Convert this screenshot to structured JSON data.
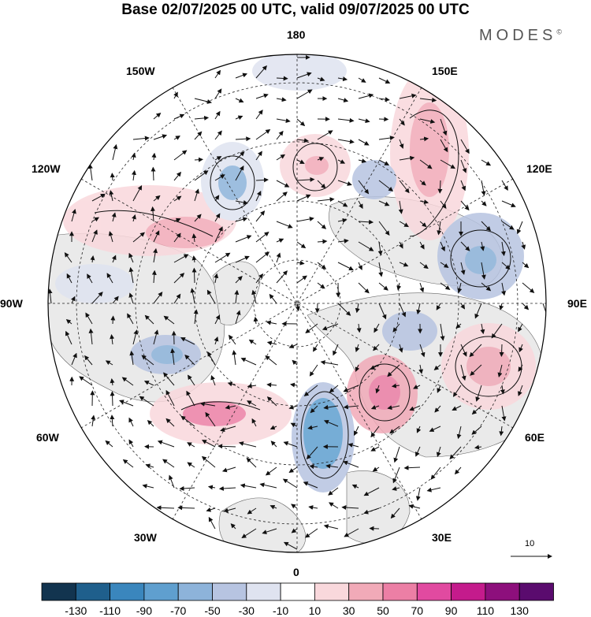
{
  "title": "Base 02/07/2025 00 UTC, valid 09/07/2025 00 UTC",
  "brand": {
    "name": "MODES",
    "mark": "©"
  },
  "map": {
    "projection": "north-polar-stereographic",
    "longitude_labels": [
      {
        "key": "180",
        "text": "180"
      },
      {
        "key": "150E",
        "text": "150E"
      },
      {
        "key": "120E",
        "text": "120E"
      },
      {
        "key": "90E",
        "text": "90E"
      },
      {
        "key": "60E",
        "text": "60E"
      },
      {
        "key": "30E",
        "text": "30E"
      },
      {
        "key": "0",
        "text": "0"
      },
      {
        "key": "30W",
        "text": "30W"
      },
      {
        "key": "60W",
        "text": "60W"
      },
      {
        "key": "90W",
        "text": "90W"
      },
      {
        "key": "120W",
        "text": "120W"
      },
      {
        "key": "150W",
        "text": "150W"
      }
    ],
    "vector_scale_label": "10",
    "colors": {
      "land": "#eaeaea",
      "ocean": "#ffffff",
      "grid": "#222222"
    }
  },
  "legend": {
    "colors": [
      "#12344f",
      "#1f5f8c",
      "#3a86bd",
      "#5f9fcf",
      "#8db3da",
      "#b7c4e1",
      "#dfe3f0",
      "#ffffff",
      "#f9d8dc",
      "#f1aab8",
      "#ec7fa5",
      "#e14aa0",
      "#c41b8c",
      "#8d0f7c",
      "#5a0b6e"
    ],
    "tick_labels": [
      "-130",
      "-110",
      "-90",
      "-70",
      "-50",
      "-30",
      "-10",
      "10",
      "30",
      "50",
      "70",
      "90",
      "110",
      "130"
    ]
  },
  "anomaly_centers": [
    {
      "type": "positive",
      "level": "30",
      "color": "#f9d8dc"
    },
    {
      "type": "positive",
      "level": "50",
      "color": "#f1aab8"
    },
    {
      "type": "positive",
      "level": "70",
      "color": "#ec7fa5"
    },
    {
      "type": "negative",
      "level": "-30",
      "color": "#b7c4e1"
    },
    {
      "type": "negative",
      "level": "-50",
      "color": "#8db3da"
    },
    {
      "type": "negative",
      "level": "-70",
      "color": "#5f9fcf"
    }
  ]
}
